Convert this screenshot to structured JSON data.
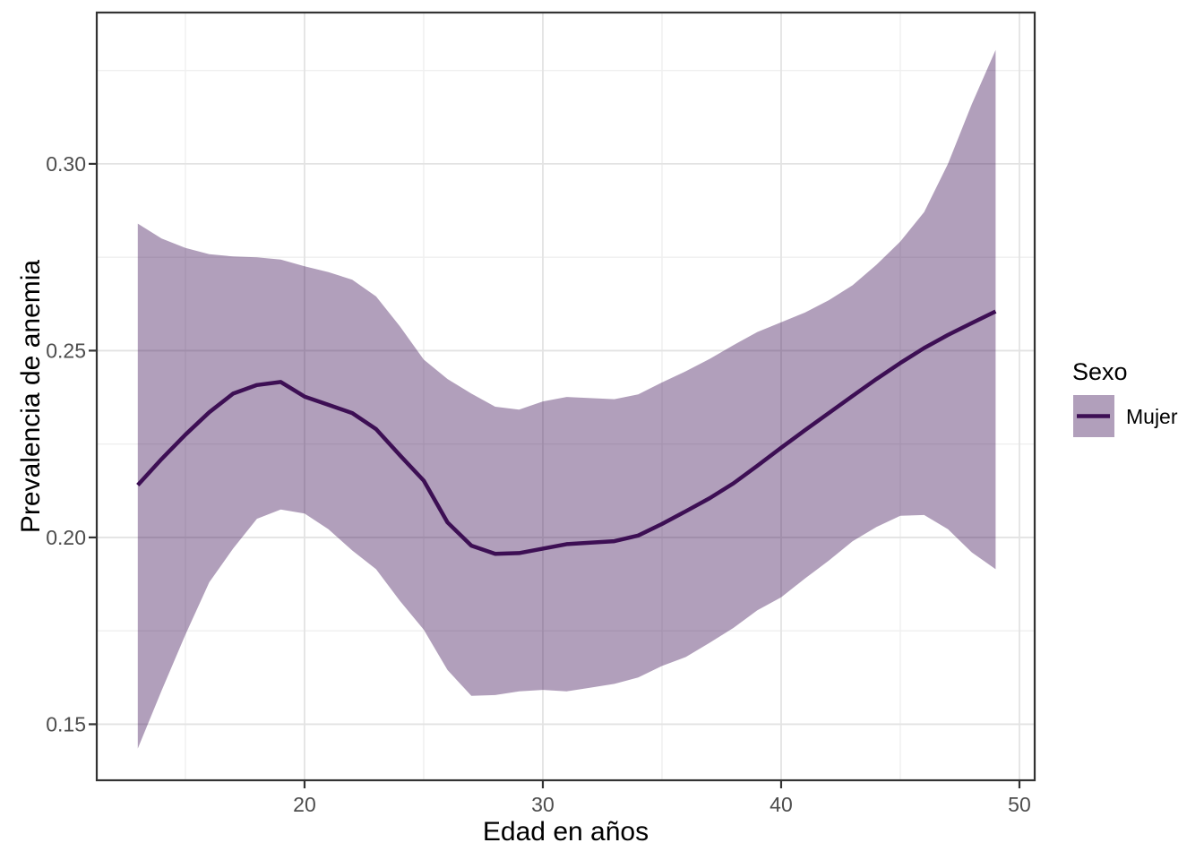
{
  "chart_data": {
    "type": "area",
    "title": "",
    "xlabel": "Edad en años",
    "ylabel": "Prevalencia de anemia",
    "xlim": [
      11.28,
      50.64
    ],
    "ylim": [
      0.135,
      0.3405
    ],
    "x_ticks": [
      20,
      30,
      40,
      50
    ],
    "x_tick_labels": [
      "20",
      "30",
      "40",
      "50"
    ],
    "x_minor_ticks": [
      15,
      25,
      35,
      45
    ],
    "y_ticks": [
      0.15,
      0.2,
      0.25,
      0.3
    ],
    "y_tick_labels": [
      "0.15",
      "0.20",
      "0.25",
      "0.30"
    ],
    "y_minor_ticks": [
      0.175,
      0.225,
      0.275,
      0.325
    ],
    "grid": true,
    "legend": {
      "title": "Sexo",
      "position": "right",
      "entries": [
        {
          "label": "Mujer",
          "line_color": "#3d0f54",
          "fill_color": "#3d0f54",
          "fill_opacity": 0.4
        }
      ]
    },
    "series": [
      {
        "name": "Mujer",
        "x": [
          13,
          14,
          15,
          16,
          17,
          18,
          19,
          20,
          21,
          22,
          23,
          24,
          25,
          26,
          27,
          28,
          29,
          30,
          31,
          32,
          33,
          34,
          35,
          36,
          37,
          38,
          39,
          40,
          41,
          42,
          43,
          44,
          45,
          46,
          47,
          48,
          49
        ],
        "y": [
          0.214,
          0.221,
          0.2275,
          0.2335,
          0.2385,
          0.2408,
          0.2416,
          0.2377,
          0.2355,
          0.2333,
          0.229,
          0.222,
          0.2152,
          0.204,
          0.1978,
          0.1956,
          0.1958,
          0.197,
          0.1982,
          0.1986,
          0.199,
          0.2005,
          0.2036,
          0.207,
          0.2105,
          0.2145,
          0.2192,
          0.224,
          0.2287,
          0.2333,
          0.2379,
          0.2424,
          0.2467,
          0.2507,
          0.2542,
          0.2574,
          0.2605
        ],
        "ci_upper": [
          0.284,
          0.28,
          0.2775,
          0.2758,
          0.2752,
          0.275,
          0.2744,
          0.2726,
          0.271,
          0.269,
          0.2645,
          0.2565,
          0.2476,
          0.2424,
          0.2385,
          0.235,
          0.2342,
          0.2364,
          0.2376,
          0.2373,
          0.237,
          0.2383,
          0.2415,
          0.2445,
          0.2478,
          0.2515,
          0.255,
          0.2576,
          0.2602,
          0.2635,
          0.2675,
          0.273,
          0.2792,
          0.2871,
          0.3,
          0.316,
          0.3305
        ],
        "ci_lower": [
          0.1435,
          0.159,
          0.174,
          0.188,
          0.197,
          0.205,
          0.2075,
          0.2064,
          0.2022,
          0.1965,
          0.1915,
          0.183,
          0.1753,
          0.1645,
          0.1576,
          0.1578,
          0.1588,
          0.1592,
          0.1588,
          0.1598,
          0.1608,
          0.1625,
          0.1656,
          0.168,
          0.1718,
          0.1758,
          0.1805,
          0.184,
          0.189,
          0.1938,
          0.199,
          0.2028,
          0.2058,
          0.206,
          0.2022,
          0.196,
          0.1915
        ]
      }
    ]
  },
  "colors": {
    "line": "#3d0f54",
    "ribbon": "#3d0f54",
    "ribbon_opacity": 0.4,
    "grid_major": "#e3e3e3",
    "grid_minor": "#efefef",
    "panel_border": "#333333",
    "tick_mark": "#333333",
    "tick_text": "#4d4d4d",
    "title_text": "#000000",
    "background": "#ffffff"
  }
}
